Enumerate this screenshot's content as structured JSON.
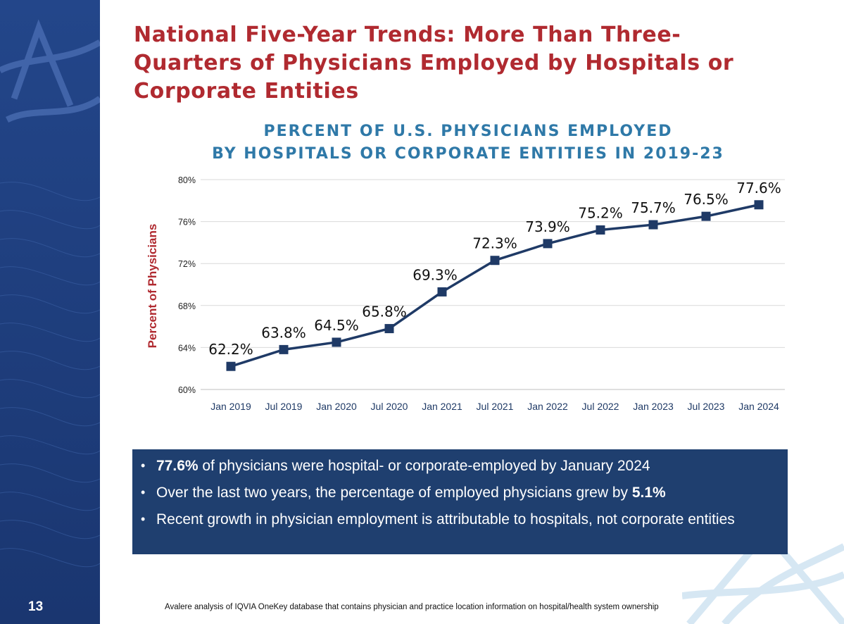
{
  "slide": {
    "title": "National Five-Year Trends: More Than Three-Quarters of Physicians Employed by Hospitals or Corporate Entities",
    "title_lines": [
      "National Five-Year Trends: More Than Three-",
      "Quarters of Physicians Employed by Hospitals or",
      "Corporate Entities"
    ],
    "page_number": "13",
    "footnote": "Avalere analysis of IQVIA OneKey database that contains physician and practice location information on hospital/health system ownership"
  },
  "chart_title_lines": [
    "PERCENT OF U.S. PHYSICIANS EMPLOYED",
    "BY HOSPITALS OR CORPORATE ENTITIES IN 2019-23"
  ],
  "chart_data": {
    "type": "line",
    "title": "PERCENT OF U.S. PHYSICIANS EMPLOYED BY HOSPITALS OR CORPORATE ENTITIES IN 2019-23",
    "xlabel": "",
    "ylabel": "Percent of Physicians",
    "categories": [
      "Jan 2019",
      "Jul 2019",
      "Jan 2020",
      "Jul 2020",
      "Jan 2021",
      "Jul 2021",
      "Jan 2022",
      "Jul 2022",
      "Jan 2023",
      "Jul 2023",
      "Jan 2024"
    ],
    "series": [
      {
        "values": [
          62.2,
          63.8,
          64.5,
          65.8,
          69.3,
          72.3,
          73.9,
          75.2,
          75.7,
          76.5,
          77.6
        ],
        "labels": [
          "62.2%",
          "63.8%",
          "64.5%",
          "65.8%",
          "69.3%",
          "72.3%",
          "73.9%",
          "75.2%",
          "75.7%",
          "76.5%",
          "77.6%"
        ]
      }
    ],
    "ylim": [
      60,
      80
    ],
    "yticks": [
      60,
      64,
      68,
      72,
      76,
      80
    ],
    "ytick_labels": [
      "60%",
      "64%",
      "68%",
      "72%",
      "76%",
      "80%"
    ],
    "grid": true,
    "legend": "none",
    "line_color": "#1f3a66",
    "marker": "square"
  },
  "callout": {
    "bullet_glyph": "•",
    "items": [
      {
        "bold": "77.6%",
        "text": " of physicians were hospital- or corporate-employed by January 2024"
      },
      {
        "text": "Over the last two years, the percentage of employed physicians grew by ",
        "bold": "5.1%"
      },
      {
        "text": "Recent growth in physician employment is attributable to hospitals, not corporate entities"
      }
    ]
  },
  "colors": {
    "title_red": "#b02a30",
    "chart_title_blue": "#2f79a8",
    "sidebar_navy": "#1f3f7a",
    "callout_navy": "#1f3f6f",
    "line_navy": "#1f3a66",
    "ylabel_red": "#b02a30"
  }
}
